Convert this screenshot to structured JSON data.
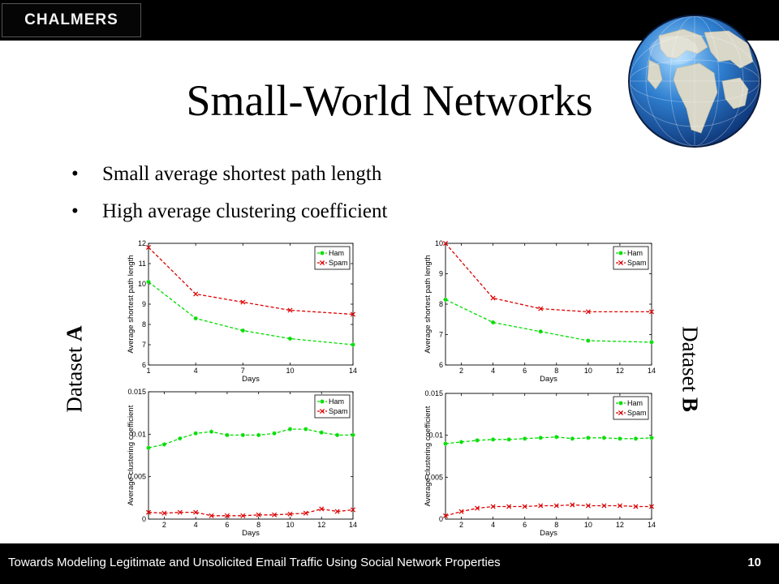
{
  "header": {
    "logo_text": "CHALMERS"
  },
  "slide": {
    "title": "Small-World Networks",
    "bullets": [
      "Small average shortest path length",
      "High average clustering coefficient"
    ],
    "dataset_a_label_prefix": "Dataset ",
    "dataset_a_label_bold": "A",
    "dataset_b_label_prefix": "Dataset ",
    "dataset_b_label_bold": "B"
  },
  "footer": {
    "text": "Towards Modeling Legitimate and Unsolicited Email Traffic Using Social Network Properties",
    "page_number": "10"
  },
  "colors": {
    "ham": "#00dd00",
    "spam": "#dd0000",
    "bar": "#000000"
  },
  "chart_data": [
    {
      "id": "a-path",
      "type": "line",
      "xlabel": "Days",
      "ylabel": "Average shortest path length",
      "xlim": [
        1,
        14
      ],
      "ylim": [
        6,
        12
      ],
      "xticks": [
        "1",
        "4",
        "7",
        "10",
        "14"
      ],
      "yticks": [
        "6",
        "7",
        "8",
        "9",
        "10",
        "11",
        "12"
      ],
      "legend": "top-right",
      "series": [
        {
          "name": "Ham",
          "marker": "*",
          "points": [
            [
              1,
              10.1
            ],
            [
              4,
              8.3
            ],
            [
              7,
              7.7
            ],
            [
              10,
              7.3
            ],
            [
              14,
              7.0
            ]
          ]
        },
        {
          "name": "Spam",
          "marker": "x",
          "points": [
            [
              1,
              11.8
            ],
            [
              4,
              9.5
            ],
            [
              7,
              9.1
            ],
            [
              10,
              8.7
            ],
            [
              14,
              8.5
            ]
          ]
        }
      ]
    },
    {
      "id": "b-path",
      "type": "line",
      "xlabel": "Days",
      "ylabel": "Average shortest path length",
      "xlim": [
        1,
        14
      ],
      "ylim": [
        6,
        10
      ],
      "xticks": [
        "2",
        "4",
        "6",
        "8",
        "10",
        "12",
        "14"
      ],
      "yticks": [
        "6",
        "7",
        "8",
        "9",
        "10"
      ],
      "legend": "top-right",
      "series": [
        {
          "name": "Ham",
          "marker": "*",
          "points": [
            [
              1,
              8.15
            ],
            [
              4,
              7.4
            ],
            [
              7,
              7.1
            ],
            [
              10,
              6.8
            ],
            [
              14,
              6.75
            ]
          ]
        },
        {
          "name": "Spam",
          "marker": "x",
          "points": [
            [
              1,
              10.0
            ],
            [
              4,
              8.2
            ],
            [
              7,
              7.85
            ],
            [
              10,
              7.75
            ],
            [
              14,
              7.75
            ]
          ]
        }
      ]
    },
    {
      "id": "a-clust",
      "type": "line",
      "xlabel": "Days",
      "ylabel": "Average clustering coefficient",
      "xlim": [
        1,
        14
      ],
      "ylim": [
        0,
        0.015
      ],
      "xticks": [
        "2",
        "4",
        "6",
        "8",
        "10",
        "12",
        "14"
      ],
      "yticks": [
        "0",
        "0.005",
        "0.01",
        "0.015"
      ],
      "legend": "top-right",
      "series": [
        {
          "name": "Ham",
          "marker": "*",
          "points": [
            [
              1,
              0.0084
            ],
            [
              2,
              0.0088
            ],
            [
              3,
              0.0095
            ],
            [
              4,
              0.0101
            ],
            [
              5,
              0.0103
            ],
            [
              6,
              0.0099
            ],
            [
              7,
              0.0099
            ],
            [
              8,
              0.0099
            ],
            [
              9,
              0.0101
            ],
            [
              10,
              0.0106
            ],
            [
              11,
              0.0106
            ],
            [
              12,
              0.0102
            ],
            [
              13,
              0.0099
            ],
            [
              14,
              0.0099
            ]
          ]
        },
        {
          "name": "Spam",
          "marker": "x",
          "points": [
            [
              1,
              0.0008
            ],
            [
              2,
              0.0007
            ],
            [
              3,
              0.0008
            ],
            [
              4,
              0.0008
            ],
            [
              5,
              0.0004
            ],
            [
              6,
              0.0004
            ],
            [
              7,
              0.0004
            ],
            [
              8,
              0.0005
            ],
            [
              9,
              0.0005
            ],
            [
              10,
              0.0006
            ],
            [
              11,
              0.0007
            ],
            [
              12,
              0.0012
            ],
            [
              13,
              0.0009
            ],
            [
              14,
              0.0011
            ]
          ]
        }
      ]
    },
    {
      "id": "b-clust",
      "type": "line",
      "xlabel": "Days",
      "ylabel": "Average clustering coefficient",
      "xlim": [
        1,
        14
      ],
      "ylim": [
        0,
        0.015
      ],
      "xticks": [
        "2",
        "4",
        "6",
        "8",
        "10",
        "12",
        "14"
      ],
      "yticks": [
        "0",
        "0.005",
        "0.01",
        "0.015"
      ],
      "legend": "top-right",
      "series": [
        {
          "name": "Ham",
          "marker": "*",
          "points": [
            [
              1,
              0.009
            ],
            [
              2,
              0.0092
            ],
            [
              3,
              0.0094
            ],
            [
              4,
              0.0095
            ],
            [
              5,
              0.0095
            ],
            [
              6,
              0.0096
            ],
            [
              7,
              0.0097
            ],
            [
              8,
              0.0098
            ],
            [
              9,
              0.0096
            ],
            [
              10,
              0.0097
            ],
            [
              11,
              0.0097
            ],
            [
              12,
              0.0096
            ],
            [
              13,
              0.0096
            ],
            [
              14,
              0.0097
            ]
          ]
        },
        {
          "name": "Spam",
          "marker": "x",
          "points": [
            [
              1,
              0.0004
            ],
            [
              2,
              0.0009
            ],
            [
              3,
              0.0013
            ],
            [
              4,
              0.0015
            ],
            [
              5,
              0.0015
            ],
            [
              6,
              0.0015
            ],
            [
              7,
              0.0016
            ],
            [
              8,
              0.0016
            ],
            [
              9,
              0.0017
            ],
            [
              10,
              0.0016
            ],
            [
              11,
              0.0016
            ],
            [
              12,
              0.0016
            ],
            [
              13,
              0.0015
            ],
            [
              14,
              0.0015
            ]
          ]
        }
      ]
    }
  ]
}
